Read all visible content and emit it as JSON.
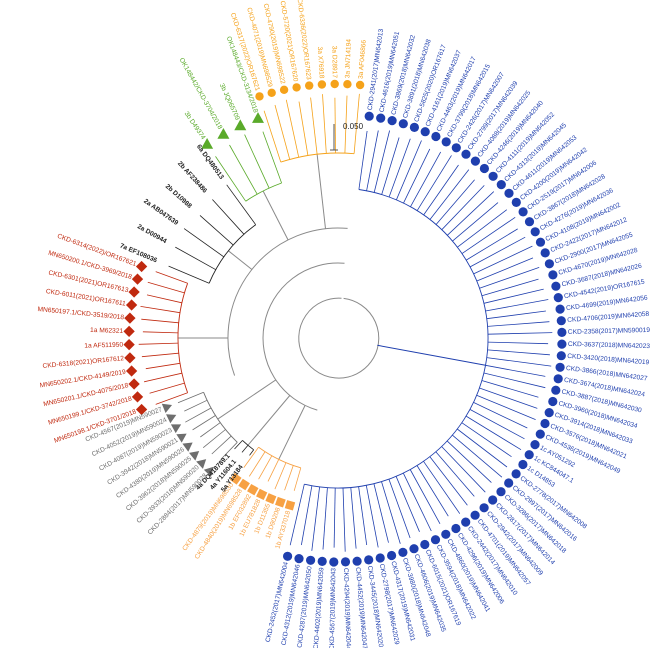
{
  "scale_bar": {
    "label": "0.050"
  },
  "colors": {
    "blue": "#1f3fae",
    "orange": "#f5a21a",
    "light_orange": "#f7a143",
    "green": "#5aaa2a",
    "red": "#c0290f",
    "grey": "#6e6e6e",
    "black": "#222222",
    "backbone": "#8a8a8a"
  },
  "clades": [
    {
      "name": "genotype-1c-blue",
      "color": "blue",
      "marker": "circle",
      "labels": [
        "CKD-2941(2017)MN642013",
        "CKD-4616(2019)MN642051",
        "CKD-3869(2018)MN642032",
        "CKD-3891(2018)MN642038",
        "CKD-5825(2020)OR167617",
        "CKD-4161(2019)MN642037",
        "CKD-4463(2019)MN642017",
        "CKD-3799(2018)MN642015",
        "CKD-2426(2017)MN642007",
        "CKD-2799(2017)MN642039",
        "CKD-4088(2019)MN642025",
        "CKD-4246(2019)MN642040",
        "CKD-4111(2019)MN642052",
        "CKD-4313(2019)MN642045",
        "CKD-4611(2019)MN642053",
        "CKD-4200(2019)MN642042",
        "CKD-2519(2017)MN642006",
        "CKD-3867(2018)MN642028",
        "CKD-4276(2019)MN642036",
        "CKD-4108(2019)MN642002",
        "CKD-2422(2017)MN642012",
        "CKD-2900(2017)MN642055",
        "CKD-4670(2019)MN642028",
        "CKD-3687(2018)MN642026",
        "CKD-4542(2019)OR167615",
        "CKD-4699(2019)MN642056",
        "CKD-4706(2019)MN642058",
        "CKD-2358(2017)MN590019",
        "CKD-3637(2018)MN642023",
        "CKD-3420(2018)MN642019",
        "CKD-3866(2018)MN642027",
        "CKD-3674(2018)MN642024",
        "CKD-3887(2018)MN642030",
        "CKD-3960(2018)MN642034",
        "CKD-3914(2018)MN642033",
        "CKD-3576(2018)MN642021",
        "CKD-4536(2019)MN642049",
        "1c AY051292",
        "1c KC844047.1",
        "1c D14853",
        "CKD-2778(2017)MN642008",
        "CKD-2997(2017)MN642016",
        "CKD-3286(2017)MN642018",
        "CKD-2817(2017)MN642014",
        "CKD-2942(2017)MN642009",
        "CKD-4701(2019)MN642057",
        "CKD-2442(2017)MN642010",
        "CKD-4296(2019)MN642006",
        "CKD-4860(2019)MN642041",
        "CKD-3594(2018)MN642022",
        "CKD-6015(2021)OR167619",
        "CKD-4606(2019)MN642035",
        "CKD-3980(2018)MN642048",
        "CKD-4317(2019)MN642031",
        "CKD-2798(2017)MN642029",
        "CKD-3445(2018)MN642020",
        "CKD-4452(2019)MN642047",
        "CKD-4294(2019)MN642044",
        "CKD-4567(2019)MN642043",
        "CKD-4402(2019)MN642059",
        "CKD-4287(2019)MN642050",
        "CKD-4312(2019)MN642046",
        "CKD-2452(2017)MN642004"
      ]
    },
    {
      "name": "genotype-1b-light-orange",
      "color": "light_orange",
      "marker": "square",
      "labels": [
        "1b AY337018",
        "1b D90208",
        "1b D11355",
        "1b EU781828",
        "1b EF032892",
        "CKD-4840(2019)MN698528",
        "CKD-4879(2019)MN698530"
      ]
    },
    {
      "name": "genotype-5-4-black",
      "color": "black",
      "marker": "none",
      "labels": [
        "5a Y13184",
        "4a Y11604.1",
        "4a DQ418789.1"
      ]
    },
    {
      "name": "genotype-grey",
      "color": "grey",
      "marker": "triangle",
      "labels": [
        "CKD-2884(2017)MN590028",
        "CKD-3933(2018)MN590020",
        "CKD-3962(2018)MN590025",
        "CKD-4380(2019)MN590026",
        "CKD-3942(2018)MN590021",
        "CKD-4087(2019)MN590023",
        "CKD-4052(2019)MN590024",
        "CKD-4567(2019)MN590027"
      ]
    },
    {
      "name": "genotype-1a-red",
      "color": "red",
      "marker": "diamond",
      "labels": [
        "MN650198.1/CKD-3701/2018",
        "MN650199.1/CKD-3742/2018",
        "MN650201.1/CKD-4075/2018",
        "MN650202.1/CKD-4149/2019",
        "CKD-6318(2021)OR167612",
        "1a AF511950",
        "1a M62321",
        "MN650197.1/CKD-3519/2018",
        "CKD-6011(2021)OR167611",
        "CKD-6301(2021)OR167613",
        "MN650200.1/CKD-3969/2018",
        "CKD-6314(2022)/OR167621"
      ]
    },
    {
      "name": "genotype-2-6-7-black",
      "color": "black",
      "marker": "none",
      "labels": [
        "7a EF108036",
        "2a D00944",
        "2a AB047639",
        "2b D10988",
        "2b AF238486",
        "6a DQ480513"
      ]
    },
    {
      "name": "genotype-3b-green",
      "color": "green",
      "marker": "triangle-up",
      "labels": [
        "3b D49374",
        "OK148442/CKD-3704/2018",
        "3b JQ065709",
        "OK148443/CKD-3134/2018"
      ]
    },
    {
      "name": "genotype-3a-orange",
      "color": "orange",
      "marker": "circle",
      "labels": [
        "CKD-6317(2022)OR167621",
        "CKD-4071(2019)MN698529",
        "CKD-4790(2019)MN698522",
        "CKD-5720(2021)OR167620",
        "CKD-6336(2022)OR167623",
        "3a X76918",
        "3a D28917",
        "3a JN714194",
        "3a AF046866"
      ]
    }
  ]
}
